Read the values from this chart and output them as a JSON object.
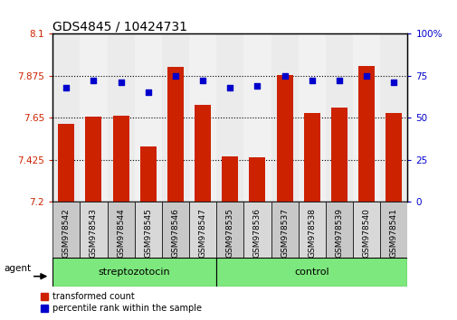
{
  "title": "GDS4845 / 10424731",
  "categories": [
    "GSM978542",
    "GSM978543",
    "GSM978544",
    "GSM978545",
    "GSM978546",
    "GSM978547",
    "GSM978535",
    "GSM978536",
    "GSM978537",
    "GSM978538",
    "GSM978539",
    "GSM978540",
    "GSM978541"
  ],
  "red_values": [
    7.615,
    7.655,
    7.66,
    7.495,
    7.92,
    7.72,
    7.44,
    7.435,
    7.88,
    7.675,
    7.705,
    7.925,
    7.675
  ],
  "blue_values": [
    68,
    72,
    71,
    65,
    75,
    72,
    68,
    69,
    75,
    72,
    72,
    75,
    71
  ],
  "ymin": 7.2,
  "ymax": 8.1,
  "yticks": [
    7.2,
    7.425,
    7.65,
    7.875,
    8.1
  ],
  "ytick_labels": [
    "7.2",
    "7.425",
    "7.65",
    "7.875",
    "8.1"
  ],
  "right_yticks": [
    0,
    25,
    50,
    75,
    100
  ],
  "right_ytick_labels": [
    "0",
    "25",
    "50",
    "75",
    "100%"
  ],
  "group1_label": "streptozotocin",
  "group2_label": "control",
  "group1_count": 6,
  "group2_count": 7,
  "agent_label": "agent",
  "legend_red": "transformed count",
  "legend_blue": "percentile rank within the sample",
  "bar_color": "#cc2200",
  "dot_color": "#0000cc",
  "group_bg": "#7de87d",
  "col_bg_even": "#c8c8c8",
  "col_bg_odd": "#d8d8d8",
  "title_fontsize": 10,
  "tick_fontsize": 7.5,
  "bar_width": 0.6
}
